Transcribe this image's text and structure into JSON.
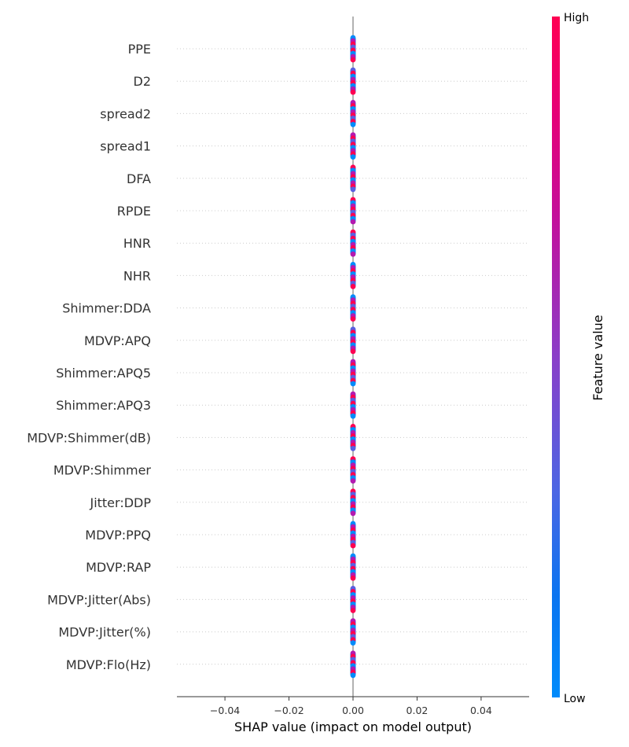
{
  "chart_data": {
    "type": "scatter",
    "subtype": "shap-beeswarm",
    "title": "",
    "xlabel": "SHAP value (impact on model output)",
    "xlim": [
      -0.055,
      0.055
    ],
    "xticks": [
      -0.04,
      -0.02,
      0.0,
      0.02,
      0.04
    ],
    "xtick_labels": [
      "−0.04",
      "−0.02",
      "0.00",
      "0.02",
      "0.04"
    ],
    "features": [
      "PPE",
      "D2",
      "spread2",
      "spread1",
      "DFA",
      "RPDE",
      "HNR",
      "NHR",
      "Shimmer:DDA",
      "MDVP:APQ",
      "Shimmer:APQ5",
      "Shimmer:APQ3",
      "MDVP:Shimmer(dB)",
      "MDVP:Shimmer",
      "Jitter:DDP",
      "MDVP:PPQ",
      "MDVP:RAP",
      "MDVP:Jitter(Abs)",
      "MDVP:Jitter(%)",
      "MDVP:Flo(Hz)"
    ],
    "shap_values_all": 0.0,
    "colorbar": {
      "label": "Feature value",
      "high_label": "High",
      "low_label": "Low",
      "colors": [
        "#008bfb",
        "#ff0052"
      ]
    },
    "grid": "dotted horizontal lines per feature",
    "zero_line": true
  }
}
